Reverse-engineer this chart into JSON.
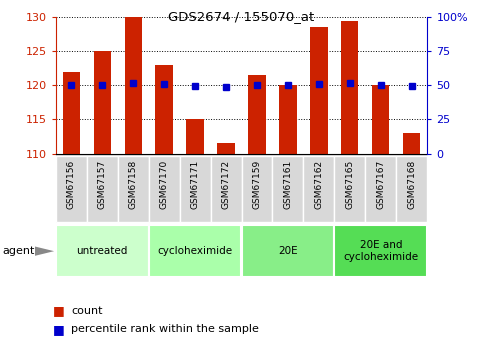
{
  "title": "GDS2674 / 155070_at",
  "samples": [
    "GSM67156",
    "GSM67157",
    "GSM67158",
    "GSM67170",
    "GSM67171",
    "GSM67172",
    "GSM67159",
    "GSM67161",
    "GSM67162",
    "GSM67165",
    "GSM67167",
    "GSM67168"
  ],
  "counts": [
    122.0,
    125.0,
    130.0,
    123.0,
    115.0,
    111.5,
    121.5,
    120.0,
    128.5,
    129.5,
    120.0,
    113.0
  ],
  "percentiles": [
    50.5,
    50.5,
    51.5,
    51.0,
    49.5,
    49.0,
    50.0,
    50.0,
    51.0,
    51.5,
    50.0,
    49.5
  ],
  "ymin": 110,
  "ymax": 130,
  "yticks": [
    110,
    115,
    120,
    125,
    130
  ],
  "right_yticks": [
    0,
    25,
    50,
    75,
    100
  ],
  "right_ytick_labels": [
    "0",
    "25",
    "50",
    "75",
    "100%"
  ],
  "bar_color": "#cc2200",
  "dot_color": "#0000cc",
  "groups": [
    {
      "label": "untreated",
      "start": 0,
      "end": 3,
      "color": "#ccffcc"
    },
    {
      "label": "cycloheximide",
      "start": 3,
      "end": 6,
      "color": "#aaffaa"
    },
    {
      "label": "20E",
      "start": 6,
      "end": 9,
      "color": "#88ee88"
    },
    {
      "label": "20E and\ncycloheximide",
      "start": 9,
      "end": 12,
      "color": "#55dd55"
    }
  ],
  "agent_label": "agent",
  "legend_count_label": "count",
  "legend_pct_label": "percentile rank within the sample",
  "bar_color_hex": "#cc2200",
  "dot_color_hex": "#0000cc",
  "tick_color_left": "#cc2200",
  "tick_color_right": "#0000cc",
  "sample_box_color": "#d8d8d8",
  "sample_box_edge": "#bbbbbb"
}
